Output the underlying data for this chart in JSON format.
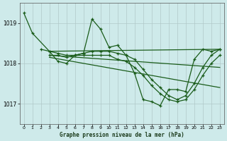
{
  "title": "Graphe pression niveau de la mer (hPa)",
  "bg_color": "#ceeaea",
  "grid_color": "#b0c8c8",
  "line_color": "#1a5c1a",
  "ylim": [
    1016.5,
    1019.5
  ],
  "xlim": [
    -0.5,
    23.5
  ],
  "yticks": [
    1017,
    1018,
    1019
  ],
  "xticks": [
    0,
    1,
    2,
    3,
    4,
    5,
    6,
    7,
    8,
    9,
    10,
    11,
    12,
    13,
    14,
    15,
    16,
    17,
    18,
    19,
    20,
    21,
    22,
    23
  ],
  "line1_x": [
    0,
    1,
    3,
    4,
    5,
    6,
    7,
    8,
    9,
    10,
    11,
    12,
    13,
    14,
    15,
    16,
    17,
    18,
    19,
    20,
    21,
    22,
    23
  ],
  "line1_y": [
    1019.25,
    1018.75,
    1018.3,
    1018.05,
    1018.0,
    1018.2,
    1018.25,
    1019.1,
    1018.85,
    1018.4,
    1018.45,
    1018.2,
    1017.75,
    1017.1,
    1017.05,
    1016.95,
    1017.35,
    1017.35,
    1017.3,
    1018.1,
    1018.35,
    1018.3,
    1018.35
  ],
  "line2_x": [
    2,
    3,
    4,
    5,
    6,
    7,
    8,
    9,
    10,
    11,
    12,
    13,
    14,
    15,
    16,
    17,
    18,
    19,
    20,
    21,
    22,
    23
  ],
  "line2_y": [
    1018.35,
    1018.3,
    1018.25,
    1018.2,
    1018.2,
    1018.25,
    1018.3,
    1018.3,
    1018.3,
    1018.25,
    1018.2,
    1018.1,
    1017.85,
    1017.6,
    1017.4,
    1017.2,
    1017.1,
    1017.2,
    1017.5,
    1017.9,
    1018.2,
    1018.35
  ],
  "line3_x": [
    3,
    4,
    5,
    6,
    7,
    8,
    9,
    10,
    11,
    12,
    13,
    14,
    15,
    16,
    17,
    18,
    19,
    20,
    21,
    22,
    23
  ],
  "line3_y": [
    1018.2,
    1018.2,
    1018.15,
    1018.2,
    1018.2,
    1018.2,
    1018.2,
    1018.2,
    1018.1,
    1018.05,
    1017.9,
    1017.7,
    1017.45,
    1017.25,
    1017.1,
    1017.05,
    1017.1,
    1017.35,
    1017.7,
    1018.0,
    1018.2
  ],
  "line4_x": [
    3,
    6,
    23
  ],
  "line4_y": [
    1018.2,
    1018.2,
    1018.35
  ],
  "line5_x": [
    3,
    6,
    23
  ],
  "line5_y": [
    1018.15,
    1018.15,
    1017.75
  ]
}
